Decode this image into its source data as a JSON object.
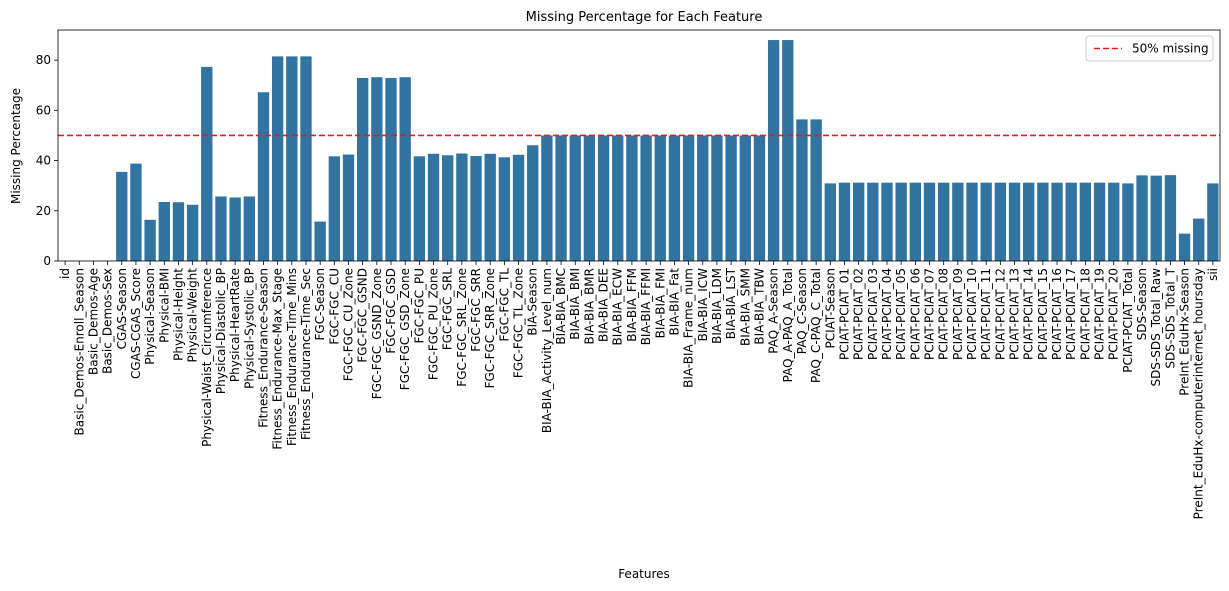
{
  "chart_data": {
    "type": "bar",
    "title": "Missing Percentage for Each Feature",
    "xlabel": "Features",
    "ylabel": "Missing Percentage",
    "ylim": [
      0,
      92
    ],
    "yticks": [
      0,
      20,
      40,
      60,
      80
    ],
    "bar_color": "#3274a1",
    "reference_line": {
      "value": 50,
      "label": "50% missing",
      "color": "#e41a1c",
      "style": "dashed"
    },
    "legend_position": "top-right",
    "grid": false,
    "categories": [
      "id",
      "Basic_Demos-Enroll_Season",
      "Basic_Demos-Age",
      "Basic_Demos-Sex",
      "CGAS-Season",
      "CGAS-CGAS_Score",
      "Physical-Season",
      "Physical-BMI",
      "Physical-Height",
      "Physical-Weight",
      "Physical-Waist_Circumference",
      "Physical-Diastolic_BP",
      "Physical-HeartRate",
      "Physical-Systolic_BP",
      "Fitness_Endurance-Season",
      "Fitness_Endurance-Max_Stage",
      "Fitness_Endurance-Time_Mins",
      "Fitness_Endurance-Time_Sec",
      "FGC-Season",
      "FGC-FGC_CU",
      "FGC-FGC_CU_Zone",
      "FGC-FGC_GSND",
      "FGC-FGC_GSND_Zone",
      "FGC-FGC_GSD",
      "FGC-FGC_GSD_Zone",
      "FGC-FGC_PU",
      "FGC-FGC_PU_Zone",
      "FGC-FGC_SRL",
      "FGC-FGC_SRL_Zone",
      "FGC-FGC_SRR",
      "FGC-FGC_SRR_Zone",
      "FGC-FGC_TL",
      "FGC-FGC_TL_Zone",
      "BIA-Season",
      "BIA-BIA_Activity_Level_num",
      "BIA-BIA_BMC",
      "BIA-BIA_BMI",
      "BIA-BIA_BMR",
      "BIA-BIA_DEE",
      "BIA-BIA_ECW",
      "BIA-BIA_FFM",
      "BIA-BIA_FFMI",
      "BIA-BIA_FMI",
      "BIA-BIA_Fat",
      "BIA-BIA_Frame_num",
      "BIA-BIA_ICW",
      "BIA-BIA_LDM",
      "BIA-BIA_LST",
      "BIA-BIA_SMM",
      "BIA-BIA_TBW",
      "PAQ_A-Season",
      "PAQ_A-PAQ_A_Total",
      "PAQ_C-Season",
      "PAQ_C-PAQ_C_Total",
      "PCIAT-Season",
      "PCIAT-PCIAT_01",
      "PCIAT-PCIAT_02",
      "PCIAT-PCIAT_03",
      "PCIAT-PCIAT_04",
      "PCIAT-PCIAT_05",
      "PCIAT-PCIAT_06",
      "PCIAT-PCIAT_07",
      "PCIAT-PCIAT_08",
      "PCIAT-PCIAT_09",
      "PCIAT-PCIAT_10",
      "PCIAT-PCIAT_11",
      "PCIAT-PCIAT_12",
      "PCIAT-PCIAT_13",
      "PCIAT-PCIAT_14",
      "PCIAT-PCIAT_15",
      "PCIAT-PCIAT_16",
      "PCIAT-PCIAT_17",
      "PCIAT-PCIAT_18",
      "PCIAT-PCIAT_19",
      "PCIAT-PCIAT_20",
      "PCIAT-PCIAT_Total",
      "SDS-Season",
      "SDS-SDS_Total_Raw",
      "SDS-SDS_Total_T",
      "PreInt_EduHx-Season",
      "PreInt_EduHx-computerinternet_hoursday",
      "sii"
    ],
    "values": [
      0,
      0,
      0,
      0,
      35.5,
      38.8,
      16.4,
      23.5,
      23.4,
      22.4,
      77.3,
      25.7,
      25.3,
      25.7,
      67.2,
      81.5,
      81.5,
      81.5,
      15.7,
      41.7,
      42.4,
      72.9,
      73.2,
      72.9,
      73.2,
      41.7,
      42.7,
      42.1,
      42.8,
      41.8,
      42.7,
      41.3,
      42.3,
      46.1,
      50,
      50,
      50,
      50,
      50,
      50,
      50,
      50,
      50,
      50,
      50,
      50,
      50,
      50,
      50,
      50,
      88,
      88,
      56.4,
      56.4,
      30.9,
      31.2,
      31.2,
      31.2,
      31.2,
      31.2,
      31.2,
      31.2,
      31.2,
      31.2,
      31.2,
      31.2,
      31.2,
      31.2,
      31.2,
      31.2,
      31.2,
      31.2,
      31.2,
      31.2,
      31.2,
      30.9,
      34.1,
      34.0,
      34.2,
      10.9,
      16.9,
      30.9
    ]
  }
}
